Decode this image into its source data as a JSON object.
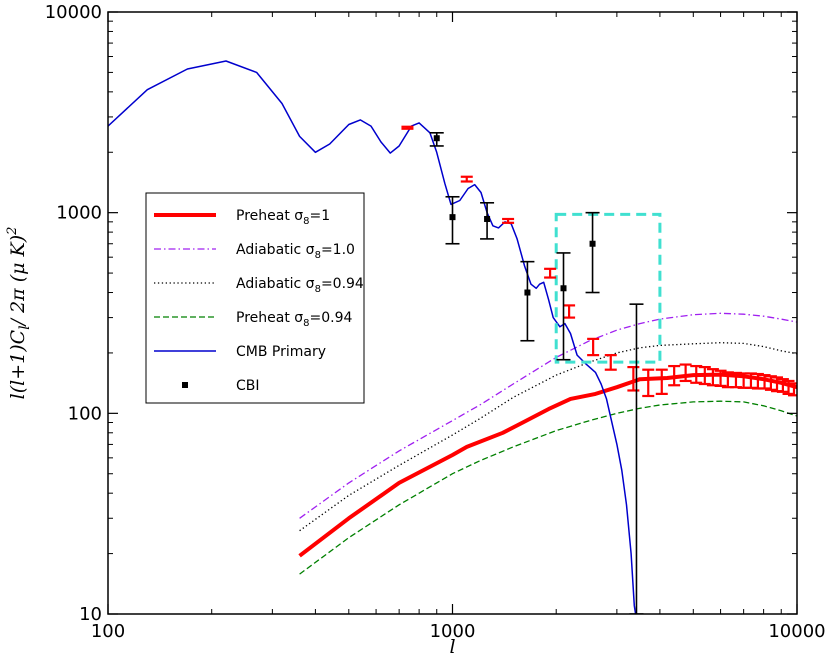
{
  "chart_data": {
    "type": "line",
    "x_scale": "log",
    "y_scale": "log",
    "xlim": [
      100,
      10000
    ],
    "ylim": [
      10,
      10000
    ],
    "xlabel": "l",
    "ylabel": "l(l+1)C_l / 2π  (μK)^2",
    "ylabel_parts": {
      "main": "l(l+1)C",
      "sub": "l",
      "mid": "/ 2π  (μ K)",
      "sup": "2"
    },
    "x_ticks": [
      {
        "value": 100,
        "label": "100"
      },
      {
        "value": 1000,
        "label": "1000"
      },
      {
        "value": 10000,
        "label": "10000"
      }
    ],
    "y_ticks": [
      {
        "value": 10,
        "label": "10"
      },
      {
        "value": 100,
        "label": "100"
      },
      {
        "value": 1000,
        "label": "1000"
      },
      {
        "value": 10000,
        "label": "10000"
      }
    ],
    "legend_location": "center-left",
    "series": [
      {
        "id": "preheat1",
        "name": "Preheat σ8=1",
        "legend_main": "Preheat σ",
        "legend_sub": "8",
        "legend_tail": "=1",
        "style": "solid",
        "color": "#ff0000",
        "width": 4,
        "points": [
          [
            360,
            19.5
          ],
          [
            500,
            30
          ],
          [
            700,
            45
          ],
          [
            1000,
            62
          ],
          [
            1100,
            68
          ],
          [
            1400,
            80
          ],
          [
            1600,
            90
          ],
          [
            1900,
            105
          ],
          [
            2200,
            118
          ],
          [
            2600,
            125
          ],
          [
            3000,
            135
          ],
          [
            3500,
            148
          ],
          [
            4200,
            150
          ],
          [
            5000,
            155
          ],
          [
            6000,
            156
          ],
          [
            7000,
            153
          ],
          [
            8000,
            148
          ],
          [
            9000,
            142
          ],
          [
            10000,
            135
          ]
        ]
      },
      {
        "id": "adiabatic1",
        "name": "Adiabatic σ8=1.0",
        "legend_main": "Adiabatic σ",
        "legend_sub": "8",
        "legend_tail": "=1.0",
        "style": "dashdot",
        "color": "#a020f0",
        "width": 1.3,
        "points": [
          [
            360,
            30
          ],
          [
            500,
            45
          ],
          [
            700,
            65
          ],
          [
            1000,
            92
          ],
          [
            1200,
            110
          ],
          [
            1500,
            140
          ],
          [
            2000,
            190
          ],
          [
            2500,
            230
          ],
          [
            3000,
            260
          ],
          [
            3500,
            280
          ],
          [
            4000,
            295
          ],
          [
            5000,
            310
          ],
          [
            6000,
            315
          ],
          [
            7000,
            312
          ],
          [
            8000,
            305
          ],
          [
            9000,
            295
          ],
          [
            10000,
            285
          ]
        ]
      },
      {
        "id": "adiabatic094",
        "name": "Adiabatic σ8=0.94",
        "legend_main": "Adiabatic σ",
        "legend_sub": "8",
        "legend_tail": "=0.94",
        "style": "dotted",
        "color": "#000000",
        "width": 1.3,
        "points": [
          [
            360,
            26
          ],
          [
            500,
            39
          ],
          [
            700,
            55
          ],
          [
            1000,
            78
          ],
          [
            1200,
            94
          ],
          [
            1500,
            120
          ],
          [
            2000,
            155
          ],
          [
            2500,
            180
          ],
          [
            3000,
            200
          ],
          [
            3500,
            212
          ],
          [
            4000,
            218
          ],
          [
            5000,
            222
          ],
          [
            6000,
            225
          ],
          [
            7000,
            223
          ],
          [
            8000,
            215
          ],
          [
            9000,
            205
          ],
          [
            10000,
            198
          ]
        ]
      },
      {
        "id": "preheat094",
        "name": "Preheat σ8=0.94",
        "legend_main": "Preheat σ",
        "legend_sub": "8",
        "legend_tail": "=0.94",
        "style": "dashed",
        "color": "#008000",
        "width": 1.3,
        "points": [
          [
            360,
            15.8
          ],
          [
            500,
            24
          ],
          [
            700,
            35
          ],
          [
            1000,
            50
          ],
          [
            1200,
            58
          ],
          [
            1500,
            68
          ],
          [
            2000,
            82
          ],
          [
            2500,
            92
          ],
          [
            3000,
            100
          ],
          [
            3500,
            106
          ],
          [
            4000,
            110
          ],
          [
            5000,
            114
          ],
          [
            6000,
            115
          ],
          [
            7000,
            114
          ],
          [
            8000,
            109
          ],
          [
            9000,
            103
          ],
          [
            10000,
            97
          ]
        ]
      },
      {
        "id": "cmb",
        "name": "CMB Primary",
        "legend_main": "CMB Primary",
        "legend_sub": "",
        "legend_tail": "",
        "style": "solid",
        "color": "#0000cd",
        "width": 1.5,
        "points": [
          [
            100,
            2700
          ],
          [
            130,
            4100
          ],
          [
            170,
            5200
          ],
          [
            220,
            5700
          ],
          [
            270,
            5000
          ],
          [
            320,
            3500
          ],
          [
            360,
            2400
          ],
          [
            400,
            2000
          ],
          [
            440,
            2200
          ],
          [
            500,
            2750
          ],
          [
            540,
            2900
          ],
          [
            580,
            2700
          ],
          [
            620,
            2250
          ],
          [
            660,
            1980
          ],
          [
            700,
            2150
          ],
          [
            760,
            2700
          ],
          [
            800,
            2800
          ],
          [
            860,
            2500
          ],
          [
            900,
            2000
          ],
          [
            950,
            1400
          ],
          [
            990,
            1100
          ],
          [
            1050,
            1150
          ],
          [
            1110,
            1320
          ],
          [
            1160,
            1380
          ],
          [
            1210,
            1260
          ],
          [
            1260,
            1000
          ],
          [
            1310,
            860
          ],
          [
            1360,
            840
          ],
          [
            1420,
            900
          ],
          [
            1480,
            880
          ],
          [
            1540,
            740
          ],
          [
            1620,
            540
          ],
          [
            1690,
            440
          ],
          [
            1750,
            420
          ],
          [
            1790,
            440
          ],
          [
            1840,
            450
          ],
          [
            1900,
            370
          ],
          [
            1960,
            300
          ],
          [
            2050,
            270
          ],
          [
            2120,
            280
          ],
          [
            2200,
            250
          ],
          [
            2300,
            195
          ],
          [
            2450,
            175
          ],
          [
            2600,
            160
          ],
          [
            2700,
            140
          ],
          [
            2800,
            118
          ],
          [
            3000,
            70
          ],
          [
            3100,
            52
          ],
          [
            3200,
            35
          ],
          [
            3300,
            20
          ],
          [
            3370,
            11
          ],
          [
            3400,
            10
          ]
        ]
      }
    ],
    "cbi_points": {
      "name": "CBI",
      "color": "#000000",
      "points": [
        {
          "x": 900,
          "y": 2350,
          "low": 2150,
          "high": 2500
        },
        {
          "x": 1000,
          "y": 950,
          "low": 700,
          "high": 1200
        },
        {
          "x": 1260,
          "y": 930,
          "low": 740,
          "high": 1120
        },
        {
          "x": 1650,
          "y": 400,
          "low": 230,
          "high": 570
        },
        {
          "x": 2100,
          "y": 420,
          "low": 185,
          "high": 630
        },
        {
          "x": 2550,
          "y": 700,
          "low": 400,
          "high": 1000
        },
        {
          "x": 3420,
          "y": 10,
          "low": 10,
          "high": 350
        }
      ]
    },
    "red_errorbars": {
      "color": "#ff0000",
      "points": [
        {
          "x": 740,
          "y": 2650,
          "low": 2620,
          "high": 2680
        },
        {
          "x": 1100,
          "y": 1470,
          "low": 1430,
          "high": 1510
        },
        {
          "x": 1450,
          "y": 910,
          "low": 890,
          "high": 930
        },
        {
          "x": 1920,
          "y": 500,
          "low": 475,
          "high": 525
        },
        {
          "x": 2180,
          "y": 325,
          "low": 300,
          "high": 345
        },
        {
          "x": 2560,
          "y": 215,
          "low": 195,
          "high": 235
        },
        {
          "x": 2880,
          "y": 180,
          "low": 165,
          "high": 195
        },
        {
          "x": 3350,
          "y": 150,
          "low": 130,
          "high": 170
        },
        {
          "x": 3700,
          "y": 143,
          "low": 122,
          "high": 165
        },
        {
          "x": 4050,
          "y": 145,
          "low": 125,
          "high": 165
        },
        {
          "x": 4400,
          "y": 155,
          "low": 138,
          "high": 172
        },
        {
          "x": 4750,
          "y": 160,
          "low": 145,
          "high": 175
        },
        {
          "x": 5100,
          "y": 158,
          "low": 142,
          "high": 172
        },
        {
          "x": 5400,
          "y": 155,
          "low": 140,
          "high": 170
        },
        {
          "x": 5700,
          "y": 152,
          "low": 138,
          "high": 166
        },
        {
          "x": 6000,
          "y": 150,
          "low": 137,
          "high": 163
        },
        {
          "x": 6300,
          "y": 148,
          "low": 135,
          "high": 160
        },
        {
          "x": 6650,
          "y": 147,
          "low": 135,
          "high": 159
        },
        {
          "x": 7000,
          "y": 146,
          "low": 134,
          "high": 158
        },
        {
          "x": 7350,
          "y": 146,
          "low": 134,
          "high": 158
        },
        {
          "x": 7700,
          "y": 145,
          "low": 133,
          "high": 157
        },
        {
          "x": 8050,
          "y": 144,
          "low": 133,
          "high": 155
        },
        {
          "x": 8400,
          "y": 142,
          "low": 131,
          "high": 153
        },
        {
          "x": 8750,
          "y": 140,
          "low": 129,
          "high": 151
        },
        {
          "x": 9100,
          "y": 138,
          "low": 128,
          "high": 148
        },
        {
          "x": 9450,
          "y": 135,
          "low": 125,
          "high": 145
        },
        {
          "x": 9800,
          "y": 132,
          "low": 123,
          "high": 141
        }
      ]
    },
    "highlight_box": {
      "color": "#40e0d0",
      "x": [
        2000,
        4000
      ],
      "y": [
        180,
        980
      ]
    }
  }
}
